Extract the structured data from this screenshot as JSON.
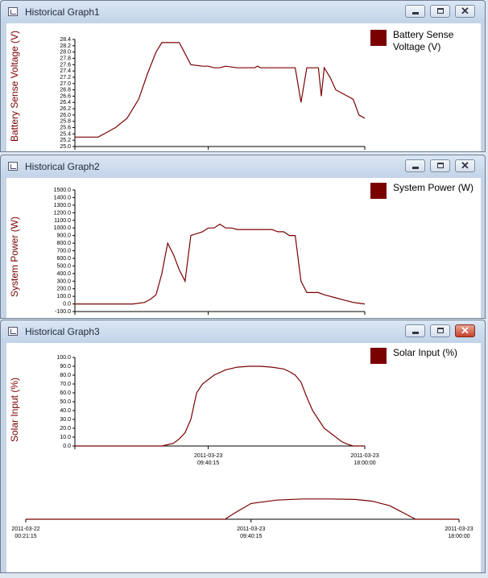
{
  "colors": {
    "series": "#7a0000",
    "axis": "#000000"
  },
  "windows": [
    {
      "title": "Historical Graph1",
      "y_label": "Battery Sense Voltage (V)",
      "legend": "Battery Sense Voltage (V)",
      "y_ticks": [
        "28.4",
        "28.2",
        "28.0",
        "27.8",
        "27.6",
        "27.4",
        "27.2",
        "27.0",
        "26.8",
        "26.6",
        "26.4",
        "26.2",
        "26.0",
        "25.8",
        "25.6",
        "25.4",
        "25.2",
        "25.0"
      ]
    },
    {
      "title": "Historical Graph2",
      "y_label": "System Power (W)",
      "legend": "System Power (W)",
      "y_ticks": [
        "1500.0",
        "1400.0",
        "1300.0",
        "1200.0",
        "1100.0",
        "1000.0",
        "900.0",
        "800.0",
        "700.0",
        "600.0",
        "500.0",
        "400.0",
        "300.0",
        "200.0",
        "100.0",
        "0.0",
        "-100.0"
      ]
    },
    {
      "title": "Historical Graph3",
      "y_label": "Solar Input (%)",
      "legend": "Solar Input (%)",
      "y_ticks": [
        "100.0",
        "90.0",
        "80.0",
        "70.0",
        "60.0",
        "50.0",
        "40.0",
        "30.0",
        "20.0",
        "10.0",
        "0.0"
      ],
      "x_ticks": [
        {
          "date": "2011-03-23",
          "time": "09:40:15"
        },
        {
          "date": "2011-03-23",
          "time": "18:00:00"
        }
      ],
      "overview_x_ticks": [
        {
          "date": "2011-03-22",
          "time": "00:21:15"
        },
        {
          "date": "2011-03-23",
          "time": "09:40:15"
        },
        {
          "date": "2011-03-23",
          "time": "18:00:00"
        }
      ]
    }
  ],
  "chart_data": [
    {
      "type": "line",
      "title": "Historical Graph1",
      "ylabel": "Battery Sense Voltage (V)",
      "ylim": [
        25.0,
        28.4
      ],
      "x": [
        0,
        5,
        8,
        10,
        14,
        18,
        22,
        25,
        28,
        30,
        32,
        36,
        40,
        44,
        46,
        48,
        50,
        52,
        56,
        60,
        62,
        63,
        64,
        66,
        70,
        74,
        76,
        78,
        80,
        82,
        84,
        85,
        86,
        88,
        90,
        92,
        94,
        96,
        98,
        100
      ],
      "series": [
        {
          "name": "Battery Sense Voltage (V)",
          "values": [
            25.3,
            25.3,
            25.3,
            25.4,
            25.6,
            25.9,
            26.5,
            27.3,
            28.0,
            28.3,
            28.3,
            28.3,
            27.6,
            27.55,
            27.55,
            27.5,
            27.5,
            27.55,
            27.5,
            27.5,
            27.5,
            27.55,
            27.5,
            27.5,
            27.5,
            27.5,
            27.5,
            26.4,
            27.5,
            27.5,
            27.5,
            26.6,
            27.5,
            27.2,
            26.8,
            26.7,
            26.6,
            26.5,
            26.0,
            25.9
          ]
        }
      ]
    },
    {
      "type": "line",
      "title": "Historical Graph2",
      "ylabel": "System Power (W)",
      "ylim": [
        -100,
        1500
      ],
      "x": [
        0,
        5,
        10,
        14,
        17,
        20,
        24,
        26,
        28,
        30,
        32,
        34,
        36,
        38,
        40,
        44,
        46,
        48,
        50,
        52,
        54,
        56,
        60,
        64,
        68,
        70,
        72,
        74,
        76,
        78,
        80,
        82,
        84,
        86,
        88,
        90,
        92,
        94,
        96,
        98,
        100
      ],
      "series": [
        {
          "name": "System Power (W)",
          "values": [
            0,
            0,
            0,
            0,
            0,
            0,
            20,
            60,
            120,
            400,
            800,
            650,
            450,
            300,
            900,
            950,
            1000,
            1000,
            1050,
            1000,
            1000,
            980,
            980,
            980,
            980,
            950,
            950,
            900,
            900,
            300,
            150,
            150,
            150,
            120,
            100,
            80,
            60,
            40,
            20,
            10,
            0
          ]
        }
      ]
    },
    {
      "type": "line",
      "title": "Historical Graph3",
      "ylabel": "Solar Input (%)",
      "ylim": [
        0,
        100
      ],
      "x": [
        0,
        10,
        20,
        30,
        34,
        36,
        38,
        40,
        42,
        44,
        48,
        52,
        56,
        60,
        64,
        68,
        72,
        74,
        76,
        78,
        80,
        82,
        84,
        86,
        88,
        90,
        92,
        94,
        96,
        100
      ],
      "series": [
        {
          "name": "Solar Input (%)",
          "values": [
            0,
            0,
            0,
            0,
            3,
            8,
            15,
            30,
            60,
            70,
            80,
            86,
            89,
            90,
            90,
            89,
            87,
            84,
            80,
            72,
            55,
            40,
            30,
            20,
            15,
            10,
            5,
            2,
            0,
            0
          ]
        }
      ]
    },
    {
      "type": "area",
      "title": "Historical Graph3 overview",
      "x": [
        0,
        40,
        46,
        48,
        52,
        58,
        64,
        70,
        76,
        80,
        84,
        86,
        88,
        90,
        100
      ],
      "series": [
        {
          "name": "Solar Input (%)",
          "values": [
            0,
            0,
            0,
            25,
            70,
            85,
            90,
            90,
            88,
            80,
            60,
            40,
            20,
            0,
            0
          ]
        }
      ]
    }
  ]
}
